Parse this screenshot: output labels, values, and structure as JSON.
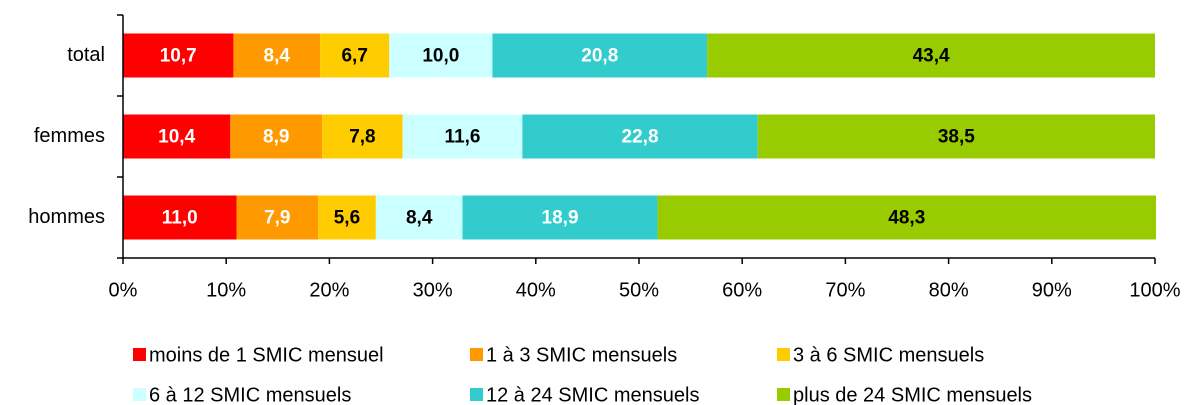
{
  "chart_data": {
    "type": "stacked-bar-horizontal",
    "categories": [
      "total",
      "femmes",
      "hommes"
    ],
    "series": [
      {
        "name": "moins de 1 SMIC mensuel",
        "color": "#ff0000",
        "label_color": "#ffffff",
        "values": [
          10.7,
          10.4,
          11.0
        ],
        "value_labels": [
          "10,7",
          "10,4",
          "11,0"
        ]
      },
      {
        "name": "1 à 3 SMIC mensuels",
        "color": "#ff9900",
        "label_color": "#ffffff",
        "values": [
          8.4,
          8.9,
          7.9
        ],
        "value_labels": [
          "8,4",
          "8,9",
          "7,9"
        ]
      },
      {
        "name": "3 à 6 SMIC mensuels",
        "color": "#ffcc00",
        "label_color": "#000000",
        "values": [
          6.7,
          7.8,
          5.6
        ],
        "value_labels": [
          "6,7",
          "7,8",
          "5,6"
        ]
      },
      {
        "name": "6 à 12 SMIC mensuels",
        "color": "#ccffff",
        "label_color": "#000000",
        "values": [
          10.0,
          11.6,
          8.4
        ],
        "value_labels": [
          "10,0",
          "11,6",
          "8,4"
        ]
      },
      {
        "name": "12 à 24 SMIC mensuels",
        "color": "#33cccc",
        "label_color": "#ffffff",
        "values": [
          20.8,
          22.8,
          18.9
        ],
        "value_labels": [
          "20,8",
          "22,8",
          "18,9"
        ]
      },
      {
        "name": "plus de 24 SMIC mensuels",
        "color": "#99cc00",
        "label_color": "#000000",
        "values": [
          43.4,
          38.5,
          48.3
        ],
        "value_labels": [
          "43,4",
          "38,5",
          "48,3"
        ]
      }
    ],
    "xlim": [
      0,
      100
    ],
    "xticks": [
      {
        "value": 0,
        "label": "0%"
      },
      {
        "value": 10,
        "label": "10%"
      },
      {
        "value": 20,
        "label": "20%"
      },
      {
        "value": 30,
        "label": "30%"
      },
      {
        "value": 40,
        "label": "40%"
      },
      {
        "value": 50,
        "label": "50%"
      },
      {
        "value": 60,
        "label": "60%"
      },
      {
        "value": 70,
        "label": "70%"
      },
      {
        "value": 80,
        "label": "80%"
      },
      {
        "value": 90,
        "label": "90%"
      },
      {
        "value": 100,
        "label": "100%"
      }
    ],
    "legend": "bottom"
  }
}
